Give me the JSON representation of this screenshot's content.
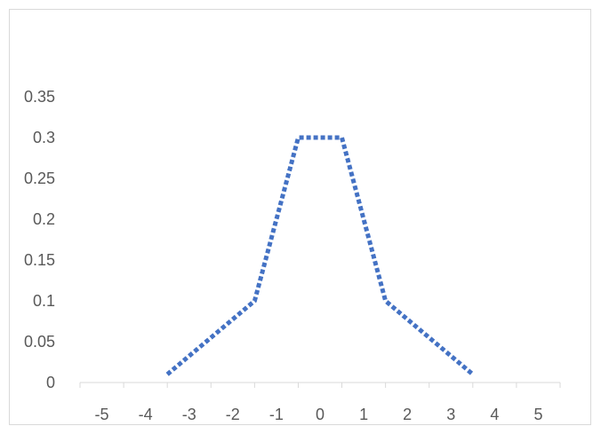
{
  "chart_data": {
    "type": "line",
    "title": "",
    "xlabel": "",
    "ylabel": "",
    "x_categories": [
      "-5",
      "-4",
      "-3",
      "-2",
      "-1",
      "0",
      "1",
      "2",
      "3",
      "4",
      "5"
    ],
    "yticks": [
      "0",
      "0.05",
      "0.1",
      "0.15",
      "0.2",
      "0.25",
      "0.3",
      "0.35"
    ],
    "ylim": [
      0,
      0.35
    ],
    "grid": false,
    "legend": "none",
    "series": [
      {
        "color": "#4472C4",
        "line_style": "dotted",
        "points": [
          {
            "x": -3.5,
            "y": 0.01
          },
          {
            "x": -1.5,
            "y": 0.1
          },
          {
            "x": -0.5,
            "y": 0.3
          },
          {
            "x": 0.5,
            "y": 0.3
          },
          {
            "x": 1.5,
            "y": 0.1
          },
          {
            "x": 3.5,
            "y": 0.01
          }
        ]
      }
    ]
  }
}
